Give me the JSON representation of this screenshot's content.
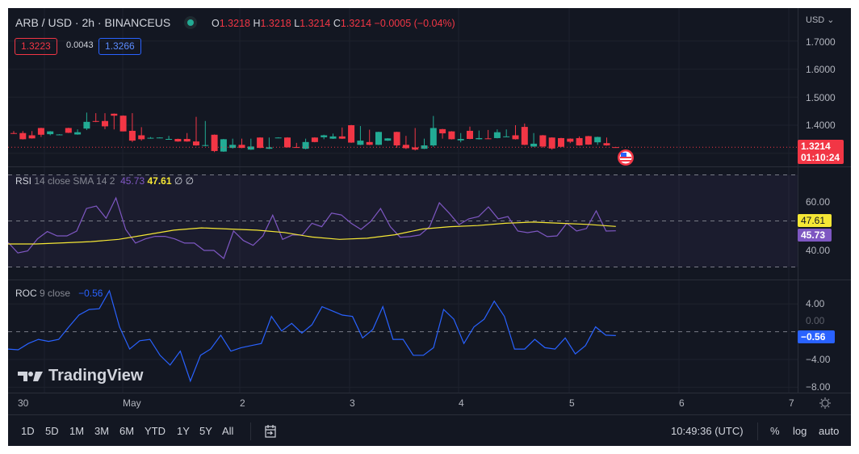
{
  "header": {
    "symbol": "ARB / USD · 2h · BINANCEUS",
    "ohlc": {
      "o_label": "O",
      "o": "1.3218",
      "h_label": "H",
      "h": "1.3218",
      "l_label": "L",
      "l": "1.3214",
      "c_label": "C",
      "c": "1.3214",
      "change": "−0.0005 (−0.04%)"
    },
    "bid": "1.3223",
    "spread": "0.0043",
    "ask": "1.3266"
  },
  "price_axis": {
    "currency": "USD ⌄",
    "ticks": [
      "1.7000",
      "1.6000",
      "1.5000",
      "1.4000"
    ],
    "last_price": "1.3214",
    "countdown": "01:10:24"
  },
  "rsi": {
    "name": "RSI",
    "params": "14 close SMA 14 2",
    "value": "45.73",
    "sma_value": "47.61",
    "extra": "∅ ∅",
    "ticks": [
      "60.00",
      "40.00"
    ]
  },
  "roc": {
    "name": "ROC",
    "params": "9 close",
    "value": "−0.56",
    "ticks": [
      "4.00",
      "0.00",
      "−4.00",
      "−8.00"
    ],
    "tag": "−0.56"
  },
  "time_axis": [
    "30",
    "May",
    "2",
    "3",
    "4",
    "5",
    "6",
    "7"
  ],
  "watermark": "TradingView",
  "bottom_bar": {
    "ranges": [
      "1D",
      "5D",
      "1M",
      "3M",
      "6M",
      "YTD",
      "1Y",
      "5Y",
      "All"
    ],
    "clock": "10:49:36 (UTC)",
    "percent": "%",
    "log": "log",
    "auto": "auto"
  },
  "colors": {
    "up": "#22ab94",
    "down": "#f23645",
    "rsi": "#7e57c2",
    "sma": "#f5e735",
    "roc": "#2962ff",
    "bg": "#131722"
  },
  "chart_data": {
    "type": "candlestick",
    "ylim": [
      1.28,
      1.75
    ],
    "candles": [
      [
        1.372,
        1.379,
        1.369,
        1.37
      ],
      [
        1.372,
        1.379,
        1.349,
        1.35
      ],
      [
        1.364,
        1.379,
        1.352,
        1.353
      ],
      [
        1.39,
        1.391,
        1.358,
        1.366
      ],
      [
        1.368,
        1.379,
        1.364,
        1.378
      ],
      [
        1.367,
        1.368,
        1.366,
        1.367
      ],
      [
        1.39,
        1.391,
        1.372,
        1.373
      ],
      [
        1.367,
        1.385,
        1.366,
        1.375
      ],
      [
        1.388,
        1.445,
        1.383,
        1.412
      ],
      [
        1.415,
        1.443,
        1.411,
        1.412
      ],
      [
        1.415,
        1.443,
        1.386,
        1.396
      ],
      [
        1.441,
        1.442,
        1.385,
        1.434
      ],
      [
        1.434,
        1.435,
        1.378,
        1.378
      ],
      [
        1.38,
        1.443,
        1.34,
        1.345
      ],
      [
        1.364,
        1.393,
        1.345,
        1.35
      ],
      [
        1.354,
        1.358,
        1.352,
        1.355
      ],
      [
        1.355,
        1.357,
        1.354,
        1.356
      ],
      [
        1.35,
        1.362,
        1.349,
        1.351
      ],
      [
        1.351,
        1.352,
        1.341,
        1.342
      ],
      [
        1.351,
        1.372,
        1.341,
        1.342
      ],
      [
        1.342,
        1.43,
        1.327,
        1.328
      ],
      [
        1.326,
        1.415,
        1.325,
        1.329
      ],
      [
        1.366,
        1.367,
        1.304,
        1.308
      ],
      [
        1.306,
        1.351,
        1.305,
        1.35
      ],
      [
        1.319,
        1.352,
        1.317,
        1.33
      ],
      [
        1.33,
        1.352,
        1.318,
        1.319
      ],
      [
        1.313,
        1.352,
        1.312,
        1.324
      ],
      [
        1.356,
        1.357,
        1.318,
        1.319
      ],
      [
        1.316,
        1.356,
        1.315,
        1.321
      ],
      [
        1.356,
        1.357,
        1.355,
        1.356
      ],
      [
        1.356,
        1.357,
        1.32,
        1.321
      ],
      [
        1.322,
        1.337,
        1.32,
        1.321
      ],
      [
        1.316,
        1.352,
        1.314,
        1.34
      ],
      [
        1.356,
        1.357,
        1.339,
        1.34
      ],
      [
        1.357,
        1.366,
        1.35,
        1.364
      ],
      [
        1.352,
        1.37,
        1.351,
        1.36
      ],
      [
        1.36,
        1.392,
        1.351,
        1.352
      ],
      [
        1.4,
        1.401,
        1.337,
        1.338
      ],
      [
        1.33,
        1.397,
        1.329,
        1.345
      ],
      [
        1.34,
        1.384,
        1.329,
        1.33
      ],
      [
        1.33,
        1.377,
        1.329,
        1.376
      ],
      [
        1.345,
        1.354,
        1.344,
        1.353
      ],
      [
        1.376,
        1.377,
        1.32,
        1.328
      ],
      [
        1.33,
        1.362,
        1.315,
        1.318
      ],
      [
        1.321,
        1.39,
        1.31,
        1.313
      ],
      [
        1.316,
        1.352,
        1.315,
        1.328
      ],
      [
        1.328,
        1.433,
        1.323,
        1.39
      ],
      [
        1.386,
        1.387,
        1.352,
        1.371
      ],
      [
        1.378,
        1.379,
        1.349,
        1.35
      ],
      [
        1.346,
        1.372,
        1.339,
        1.351
      ],
      [
        1.38,
        1.395,
        1.35,
        1.351
      ],
      [
        1.35,
        1.381,
        1.349,
        1.354
      ],
      [
        1.353,
        1.383,
        1.352,
        1.352
      ],
      [
        1.354,
        1.385,
        1.353,
        1.375
      ],
      [
        1.359,
        1.385,
        1.358,
        1.36
      ],
      [
        1.364,
        1.4,
        1.349,
        1.35
      ],
      [
        1.394,
        1.406,
        1.329,
        1.33
      ],
      [
        1.324,
        1.372,
        1.323,
        1.334
      ],
      [
        1.364,
        1.365,
        1.32,
        1.324
      ],
      [
        1.356,
        1.357,
        1.313,
        1.317
      ],
      [
        1.354,
        1.355,
        1.322,
        1.323
      ],
      [
        1.352,
        1.353,
        1.336,
        1.341
      ],
      [
        1.354,
        1.36,
        1.327,
        1.328
      ],
      [
        1.361,
        1.362,
        1.33,
        1.331
      ],
      [
        1.339,
        1.359,
        1.33,
        1.358
      ],
      [
        1.336,
        1.356,
        1.327,
        1.328
      ],
      [
        1.3218,
        1.3218,
        1.3214,
        1.3214
      ]
    ],
    "rsi": [
      40.7,
      36.1,
      37,
      42.2,
      45.4,
      43.5,
      43.5,
      45.6,
      55.4,
      56.5,
      51.2,
      60,
      46.3,
      40.4,
      42.2,
      43.3,
      43.3,
      42.2,
      40.4,
      40.4,
      37.2,
      37.2,
      33.7,
      45.6,
      41.5,
      39.4,
      43.5,
      52.5,
      42,
      43.9,
      43.9,
      49,
      47.5,
      53.4,
      52.6,
      49,
      46.3,
      49.8,
      55.4,
      47.5,
      42.9,
      43.2,
      43.9,
      47.5,
      57.9,
      53.4,
      48.4,
      50.9,
      51.9,
      56.1,
      50.9,
      51.9,
      45.6,
      44.9,
      45.6,
      43.2,
      43.5,
      49,
      45.6,
      46.7,
      54.4,
      45.6,
      45.73
    ],
    "rsi_sma": [
      40,
      40,
      40.5,
      41,
      42,
      44,
      46,
      47,
      46.5,
      46,
      45,
      43,
      42,
      42.5,
      44,
      46.5,
      47.5,
      48,
      49,
      49.5,
      49,
      48.5,
      47.61
    ],
    "rsi_ylim": [
      20,
      80
    ],
    "rsi_bands": [
      70,
      50,
      30
    ],
    "roc": [
      -2.5,
      -2.6,
      -1.7,
      -1.1,
      -1.4,
      -1.1,
      0.7,
      2.4,
      3.2,
      3.3,
      5.9,
      0.7,
      -2.5,
      -1.3,
      -1.1,
      -3.4,
      -4.8,
      -2.8,
      -7.1,
      -3.4,
      -2.5,
      -0.5,
      -2.8,
      -2.3,
      -2.0,
      -1.7,
      2.2,
      0.1,
      1.2,
      -0.2,
      1.0,
      3.6,
      3.0,
      2.4,
      2.2,
      -0.9,
      0.3,
      3.6,
      -1.1,
      -1.1,
      -3.4,
      -3.4,
      -2.3,
      3.2,
      1.8,
      -1.7,
      0.7,
      1.8,
      4.4,
      2.2,
      -2.5,
      -2.5,
      -1.1,
      -2.3,
      -2.5,
      -0.9,
      -3.2,
      -2.0,
      0.7,
      -0.5,
      -0.56
    ],
    "roc_ylim": [
      -8.8,
      8
    ]
  }
}
